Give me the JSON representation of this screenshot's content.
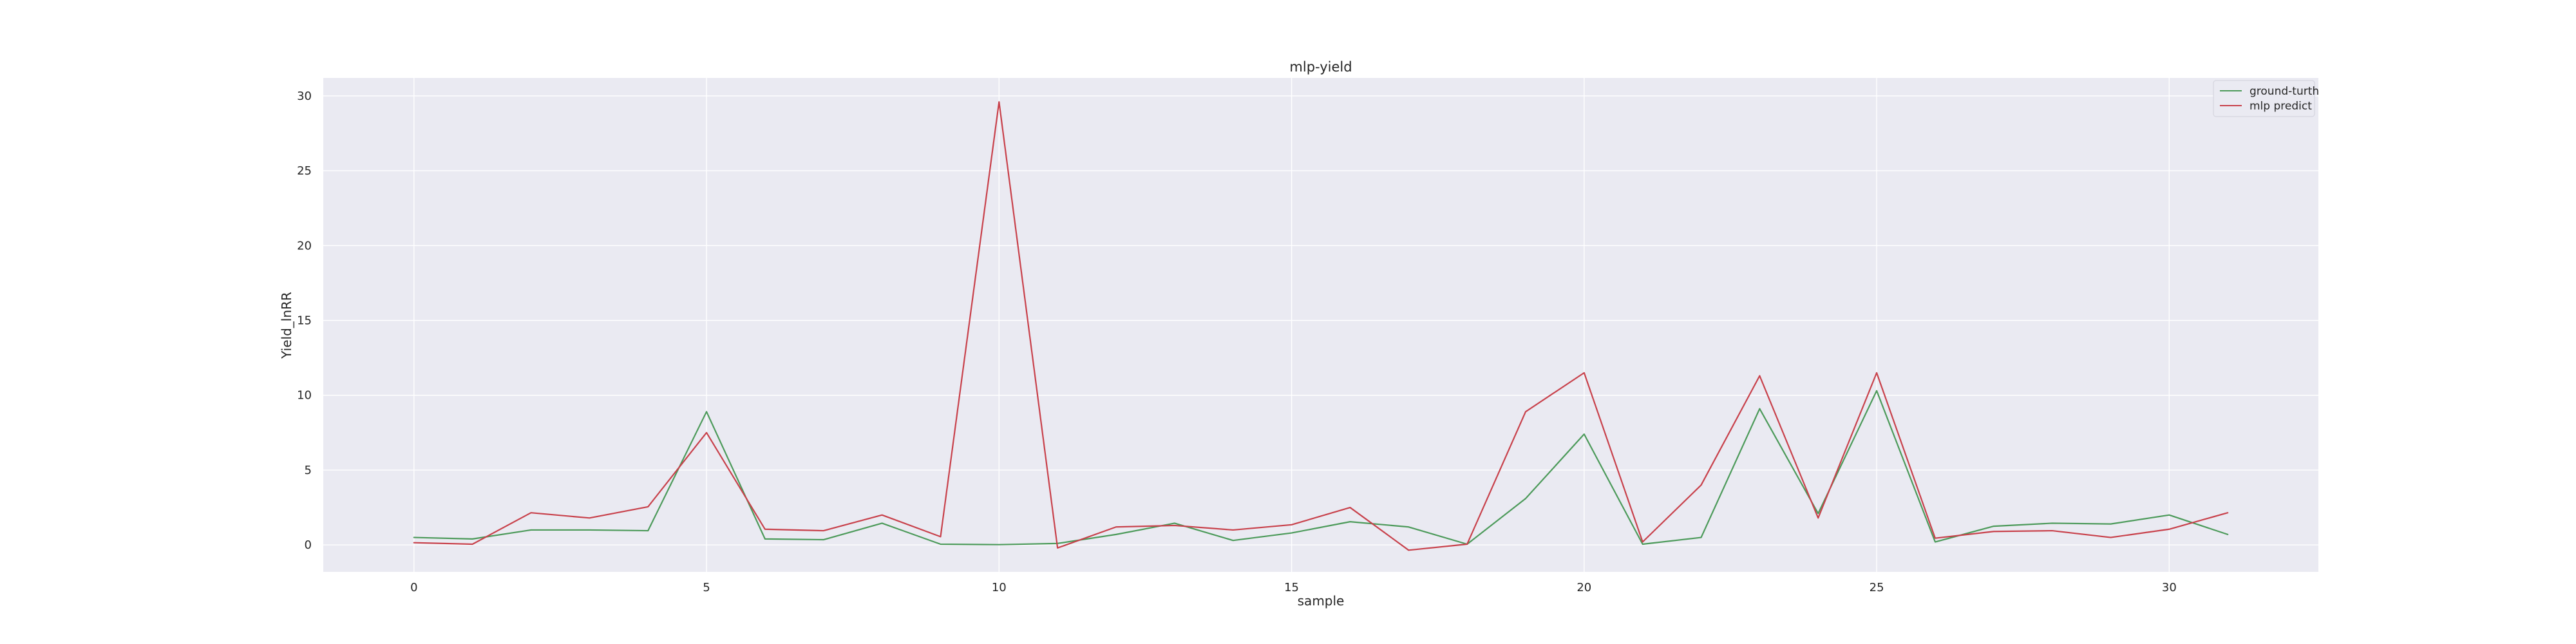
{
  "chart_data": {
    "type": "line",
    "title": "mlp-yield",
    "xlabel": "sample",
    "ylabel": "Yield_lnRR",
    "xlim": [
      -1.55,
      32.55
    ],
    "ylim": [
      -1.8,
      31.2
    ],
    "xticks": [
      0,
      5,
      10,
      15,
      20,
      25,
      30
    ],
    "yticks": [
      0,
      5,
      10,
      15,
      20,
      25,
      30
    ],
    "grid": true,
    "legend_position": "top-right",
    "x": [
      0,
      1,
      2,
      3,
      4,
      5,
      6,
      7,
      8,
      9,
      10,
      11,
      12,
      13,
      14,
      15,
      16,
      17,
      18,
      19,
      20,
      21,
      22,
      23,
      24,
      25,
      26,
      27,
      28,
      29,
      30,
      31
    ],
    "series": [
      {
        "name": "ground-turth",
        "color": "#4c9a5a",
        "values": [
          0.5,
          0.4,
          1.0,
          1.0,
          0.95,
          8.9,
          0.4,
          0.35,
          1.45,
          0.05,
          0.02,
          0.1,
          0.7,
          1.45,
          0.3,
          0.8,
          1.55,
          1.2,
          0.05,
          3.1,
          7.4,
          0.05,
          0.5,
          9.1,
          2.1,
          10.3,
          0.2,
          1.25,
          1.45,
          1.4,
          2.0,
          0.7
        ]
      },
      {
        "name": "mlp predict",
        "color": "#c8414b",
        "values": [
          0.15,
          0.05,
          2.15,
          1.8,
          2.55,
          7.5,
          1.05,
          0.95,
          2.0,
          0.55,
          29.6,
          -0.2,
          1.2,
          1.3,
          1.0,
          1.35,
          2.5,
          -0.35,
          0.05,
          8.9,
          11.5,
          0.2,
          4.0,
          11.3,
          1.8,
          11.5,
          0.45,
          0.9,
          0.95,
          0.5,
          1.05,
          2.15
        ]
      }
    ]
  }
}
